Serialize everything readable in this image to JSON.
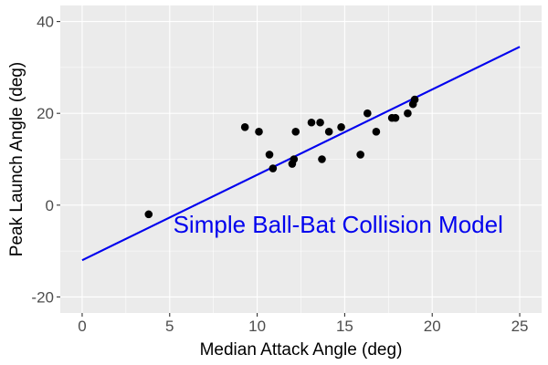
{
  "chart_data": {
    "type": "scatter",
    "xlabel": "Median Attack Angle (deg)",
    "ylabel": "Peak Launch Angle (deg)",
    "xlim": [
      -1.25,
      26.25
    ],
    "ylim": [
      -23.5,
      43.5
    ],
    "x_ticks": [
      0,
      5,
      10,
      15,
      20,
      25
    ],
    "x_tick_labels": [
      "0",
      "5",
      "10",
      "15",
      "20",
      "25"
    ],
    "y_ticks": [
      -20,
      0,
      20,
      40
    ],
    "y_tick_labels": [
      "-20",
      "0",
      "20",
      "40"
    ],
    "grid": true,
    "background_color": "#ebebeb",
    "grid_color": "#ffffff",
    "point_color": "#000000",
    "line_color": "#0000ee",
    "series": [
      {
        "type": "scatter",
        "points": [
          {
            "x": 3.8,
            "y": -2
          },
          {
            "x": 9.3,
            "y": 17
          },
          {
            "x": 10.1,
            "y": 16
          },
          {
            "x": 10.7,
            "y": 11
          },
          {
            "x": 10.9,
            "y": 8
          },
          {
            "x": 12.0,
            "y": 9
          },
          {
            "x": 12.1,
            "y": 10
          },
          {
            "x": 12.2,
            "y": 16
          },
          {
            "x": 13.1,
            "y": 18
          },
          {
            "x": 13.6,
            "y": 18
          },
          {
            "x": 13.7,
            "y": 10
          },
          {
            "x": 14.1,
            "y": 16
          },
          {
            "x": 14.8,
            "y": 17
          },
          {
            "x": 15.9,
            "y": 11
          },
          {
            "x": 16.3,
            "y": 20
          },
          {
            "x": 16.8,
            "y": 16
          },
          {
            "x": 17.7,
            "y": 19
          },
          {
            "x": 17.9,
            "y": 19
          },
          {
            "x": 18.6,
            "y": 20
          },
          {
            "x": 18.9,
            "y": 22
          },
          {
            "x": 19.0,
            "y": 23
          }
        ]
      },
      {
        "type": "line",
        "points": [
          {
            "x": 0,
            "y": -12
          },
          {
            "x": 25,
            "y": 34.5
          }
        ]
      }
    ],
    "annotations": [
      {
        "text": "Simple Ball-Bat Collision Model",
        "x": 5.2,
        "y": -6,
        "color": "#0000ee"
      }
    ]
  }
}
